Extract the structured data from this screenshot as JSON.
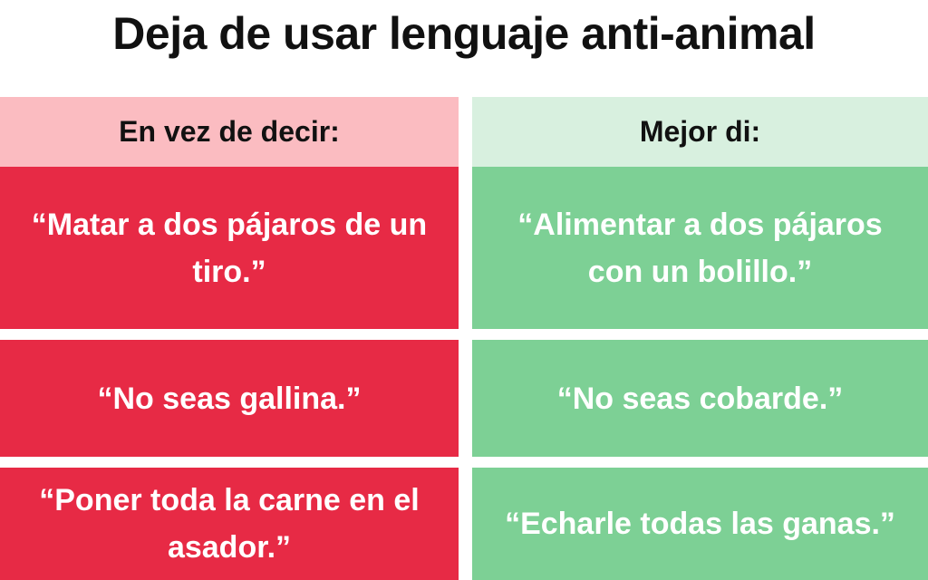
{
  "title": "Deja de usar lenguaje anti-animal",
  "columns": {
    "left_header": "En vez de decir:",
    "right_header": "Mejor di:"
  },
  "rows": [
    {
      "instead": "“Matar a dos pájaros de un tiro.”",
      "better": "“Alimentar a dos pájaros con un bolillo.”"
    },
    {
      "instead": "“No seas gallina.”",
      "better": "“No seas cobarde.”"
    },
    {
      "instead": "“Poner toda la carne en el asador.”",
      "better": "“Echarle todas las ganas.”"
    }
  ],
  "colors": {
    "red": "#e72a45",
    "pink": "#fbbcc1",
    "green": "#7dd095",
    "light_green": "#d8f0df"
  }
}
